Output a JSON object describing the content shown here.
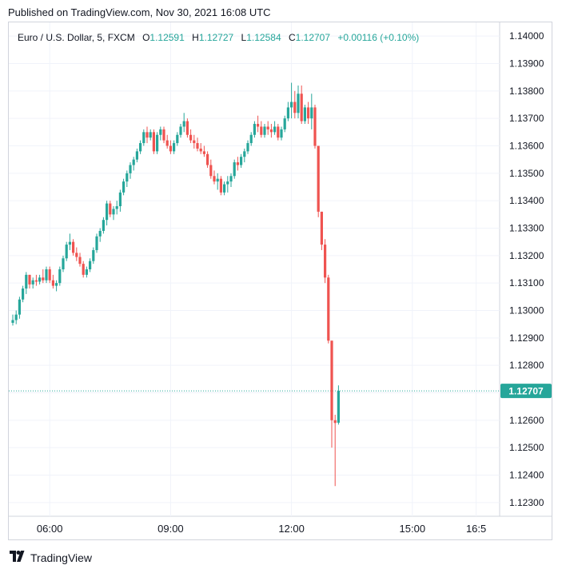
{
  "published": "Published on TradingView.com, Nov 30, 2021 16:08 UTC",
  "header": {
    "symbol": "Euro / U.S. Dollar, 5, FXCM",
    "o_label": "O",
    "o_value": "1.12591",
    "h_label": "H",
    "h_value": "1.12727",
    "l_label": "L",
    "l_value": "1.12584",
    "c_label": "C",
    "c_value": "1.12707",
    "change": "+0.00116 (+0.10%)"
  },
  "footer": {
    "brand": "TradingView",
    "logo_icon": "tradingview-logo-icon"
  },
  "colors": {
    "up": "#26a69a",
    "down": "#ef5350",
    "grid": "#f0f3fa",
    "price_label_bg": "#26a69a",
    "text": "#131722"
  },
  "chart_data": {
    "type": "candlestick",
    "title": "Euro / U.S. Dollar, 5, FXCM",
    "ylim": [
      1.1225,
      1.1405
    ],
    "y_ticks": [
      "1.14000",
      "1.13900",
      "1.13800",
      "1.13700",
      "1.13600",
      "1.13500",
      "1.13400",
      "1.13300",
      "1.13200",
      "1.13100",
      "1.13000",
      "1.12900",
      "1.12800",
      "1.12700",
      "1.12600",
      "1.12500",
      "1.12400",
      "1.12300"
    ],
    "x_ticks": [
      "06:00",
      "09:00",
      "12:00",
      "15:00",
      "16:5"
    ],
    "x_ticks_bar_index": [
      11,
      47,
      83,
      119,
      138
    ],
    "last_price": "1.12707",
    "last_price_value": 1.12707,
    "grid": true,
    "bars": [
      [
        1.12955,
        1.12985,
        1.12945,
        1.12965
      ],
      [
        1.12965,
        1.13,
        1.1295,
        1.12985
      ],
      [
        1.12985,
        1.1305,
        1.1297,
        1.1304
      ],
      [
        1.1304,
        1.1309,
        1.1303,
        1.1308
      ],
      [
        1.1308,
        1.1314,
        1.1306,
        1.1313
      ],
      [
        1.1313,
        1.1313,
        1.1308,
        1.13095
      ],
      [
        1.13095,
        1.1312,
        1.1308,
        1.1311
      ],
      [
        1.1311,
        1.1313,
        1.1309,
        1.13105
      ],
      [
        1.13105,
        1.1313,
        1.13095,
        1.1312
      ],
      [
        1.1312,
        1.1315,
        1.131,
        1.1311
      ],
      [
        1.1311,
        1.1316,
        1.131,
        1.1315
      ],
      [
        1.1315,
        1.1316,
        1.131,
        1.1311
      ],
      [
        1.1311,
        1.1313,
        1.1308,
        1.1309
      ],
      [
        1.1309,
        1.1311,
        1.1307,
        1.131
      ],
      [
        1.131,
        1.1316,
        1.1309,
        1.1315
      ],
      [
        1.1315,
        1.132,
        1.1314,
        1.1319
      ],
      [
        1.1319,
        1.1325,
        1.1318,
        1.1324
      ],
      [
        1.1324,
        1.1328,
        1.1322,
        1.1325
      ],
      [
        1.1325,
        1.1326,
        1.132,
        1.1321
      ],
      [
        1.1321,
        1.1323,
        1.1318,
        1.13195
      ],
      [
        1.13195,
        1.1321,
        1.1316,
        1.1317
      ],
      [
        1.1317,
        1.1318,
        1.1312,
        1.1313
      ],
      [
        1.1313,
        1.1316,
        1.1312,
        1.1315
      ],
      [
        1.1315,
        1.1319,
        1.1314,
        1.1318
      ],
      [
        1.1318,
        1.1323,
        1.1317,
        1.1322
      ],
      [
        1.1322,
        1.1328,
        1.1321,
        1.1327
      ],
      [
        1.1327,
        1.133,
        1.1325,
        1.1329
      ],
      [
        1.1329,
        1.1334,
        1.1328,
        1.1333
      ],
      [
        1.1333,
        1.134,
        1.1331,
        1.1339
      ],
      [
        1.1339,
        1.134,
        1.1334,
        1.1335
      ],
      [
        1.1335,
        1.1338,
        1.1333,
        1.1337
      ],
      [
        1.1337,
        1.134,
        1.1335,
        1.1338
      ],
      [
        1.1338,
        1.1344,
        1.1336,
        1.1343
      ],
      [
        1.1343,
        1.1348,
        1.1342,
        1.1347
      ],
      [
        1.1347,
        1.1351,
        1.1345,
        1.135
      ],
      [
        1.135,
        1.1354,
        1.1348,
        1.1353
      ],
      [
        1.1353,
        1.1356,
        1.1351,
        1.1355
      ],
      [
        1.1355,
        1.1359,
        1.1354,
        1.1358
      ],
      [
        1.1358,
        1.1362,
        1.1357,
        1.1361
      ],
      [
        1.1361,
        1.1366,
        1.136,
        1.1365
      ],
      [
        1.1365,
        1.1367,
        1.1361,
        1.1363
      ],
      [
        1.1363,
        1.1366,
        1.1362,
        1.1365
      ],
      [
        1.1365,
        1.1366,
        1.1357,
        1.1358
      ],
      [
        1.1358,
        1.1365,
        1.1357,
        1.1364
      ],
      [
        1.1364,
        1.1367,
        1.1362,
        1.1366
      ],
      [
        1.1366,
        1.1367,
        1.1361,
        1.1362
      ],
      [
        1.1362,
        1.1364,
        1.1359,
        1.136
      ],
      [
        1.136,
        1.1362,
        1.1357,
        1.1358
      ],
      [
        1.1358,
        1.1362,
        1.1357,
        1.1361
      ],
      [
        1.1361,
        1.1365,
        1.136,
        1.1364
      ],
      [
        1.1364,
        1.1368,
        1.1363,
        1.1367
      ],
      [
        1.1367,
        1.1372,
        1.1365,
        1.1369
      ],
      [
        1.1369,
        1.137,
        1.1363,
        1.1364
      ],
      [
        1.1364,
        1.1366,
        1.1361,
        1.1362
      ],
      [
        1.1362,
        1.1364,
        1.1359,
        1.1361
      ],
      [
        1.1361,
        1.1363,
        1.1358,
        1.1359
      ],
      [
        1.1359,
        1.1361,
        1.1357,
        1.1358
      ],
      [
        1.1358,
        1.136,
        1.1356,
        1.1357
      ],
      [
        1.1357,
        1.1358,
        1.1352,
        1.1353
      ],
      [
        1.1353,
        1.1355,
        1.1348,
        1.1349
      ],
      [
        1.1349,
        1.1351,
        1.1346,
        1.1347
      ],
      [
        1.1347,
        1.135,
        1.1344,
        1.1348
      ],
      [
        1.1348,
        1.1349,
        1.1342,
        1.1343
      ],
      [
        1.1343,
        1.1347,
        1.1342,
        1.1346
      ],
      [
        1.1346,
        1.1349,
        1.1343,
        1.1347
      ],
      [
        1.1347,
        1.135,
        1.1345,
        1.1349
      ],
      [
        1.1349,
        1.1355,
        1.1348,
        1.1354
      ],
      [
        1.1354,
        1.1356,
        1.1351,
        1.1353
      ],
      [
        1.1353,
        1.1357,
        1.1352,
        1.1356
      ],
      [
        1.1356,
        1.1359,
        1.1354,
        1.1358
      ],
      [
        1.1358,
        1.1362,
        1.1357,
        1.1361
      ],
      [
        1.1361,
        1.1365,
        1.136,
        1.1364
      ],
      [
        1.1364,
        1.1369,
        1.1363,
        1.1368
      ],
      [
        1.1368,
        1.1371,
        1.1365,
        1.1367
      ],
      [
        1.1367,
        1.1369,
        1.1363,
        1.1364
      ],
      [
        1.1364,
        1.1368,
        1.1363,
        1.1367
      ],
      [
        1.1367,
        1.1369,
        1.1364,
        1.1366
      ],
      [
        1.1366,
        1.1368,
        1.1363,
        1.1365
      ],
      [
        1.1365,
        1.1369,
        1.1364,
        1.1367
      ],
      [
        1.1367,
        1.1368,
        1.1362,
        1.1363
      ],
      [
        1.1363,
        1.1367,
        1.1362,
        1.1366
      ],
      [
        1.1366,
        1.1371,
        1.1365,
        1.137
      ],
      [
        1.137,
        1.1376,
        1.1369,
        1.1374
      ],
      [
        1.1374,
        1.1383,
        1.137,
        1.1376
      ],
      [
        1.1376,
        1.138,
        1.137,
        1.1372
      ],
      [
        1.1372,
        1.1382,
        1.137,
        1.1379
      ],
      [
        1.1379,
        1.1382,
        1.1368,
        1.1369
      ],
      [
        1.1369,
        1.1375,
        1.1368,
        1.1374
      ],
      [
        1.1374,
        1.1376,
        1.1368,
        1.137
      ],
      [
        1.137,
        1.1379,
        1.1366,
        1.1374
      ],
      [
        1.1374,
        1.1375,
        1.1359,
        1.136
      ],
      [
        1.136,
        1.136,
        1.1334,
        1.1336
      ],
      [
        1.1336,
        1.1336,
        1.1322,
        1.1324
      ],
      [
        1.1324,
        1.1326,
        1.131,
        1.1312
      ],
      [
        1.1312,
        1.1313,
        1.1288,
        1.1289
      ],
      [
        1.1289,
        1.1289,
        1.125,
        1.126
      ],
      [
        1.126,
        1.1262,
        1.1236,
        1.1259
      ],
      [
        1.12591,
        1.12727,
        1.12584,
        1.12707
      ]
    ]
  }
}
